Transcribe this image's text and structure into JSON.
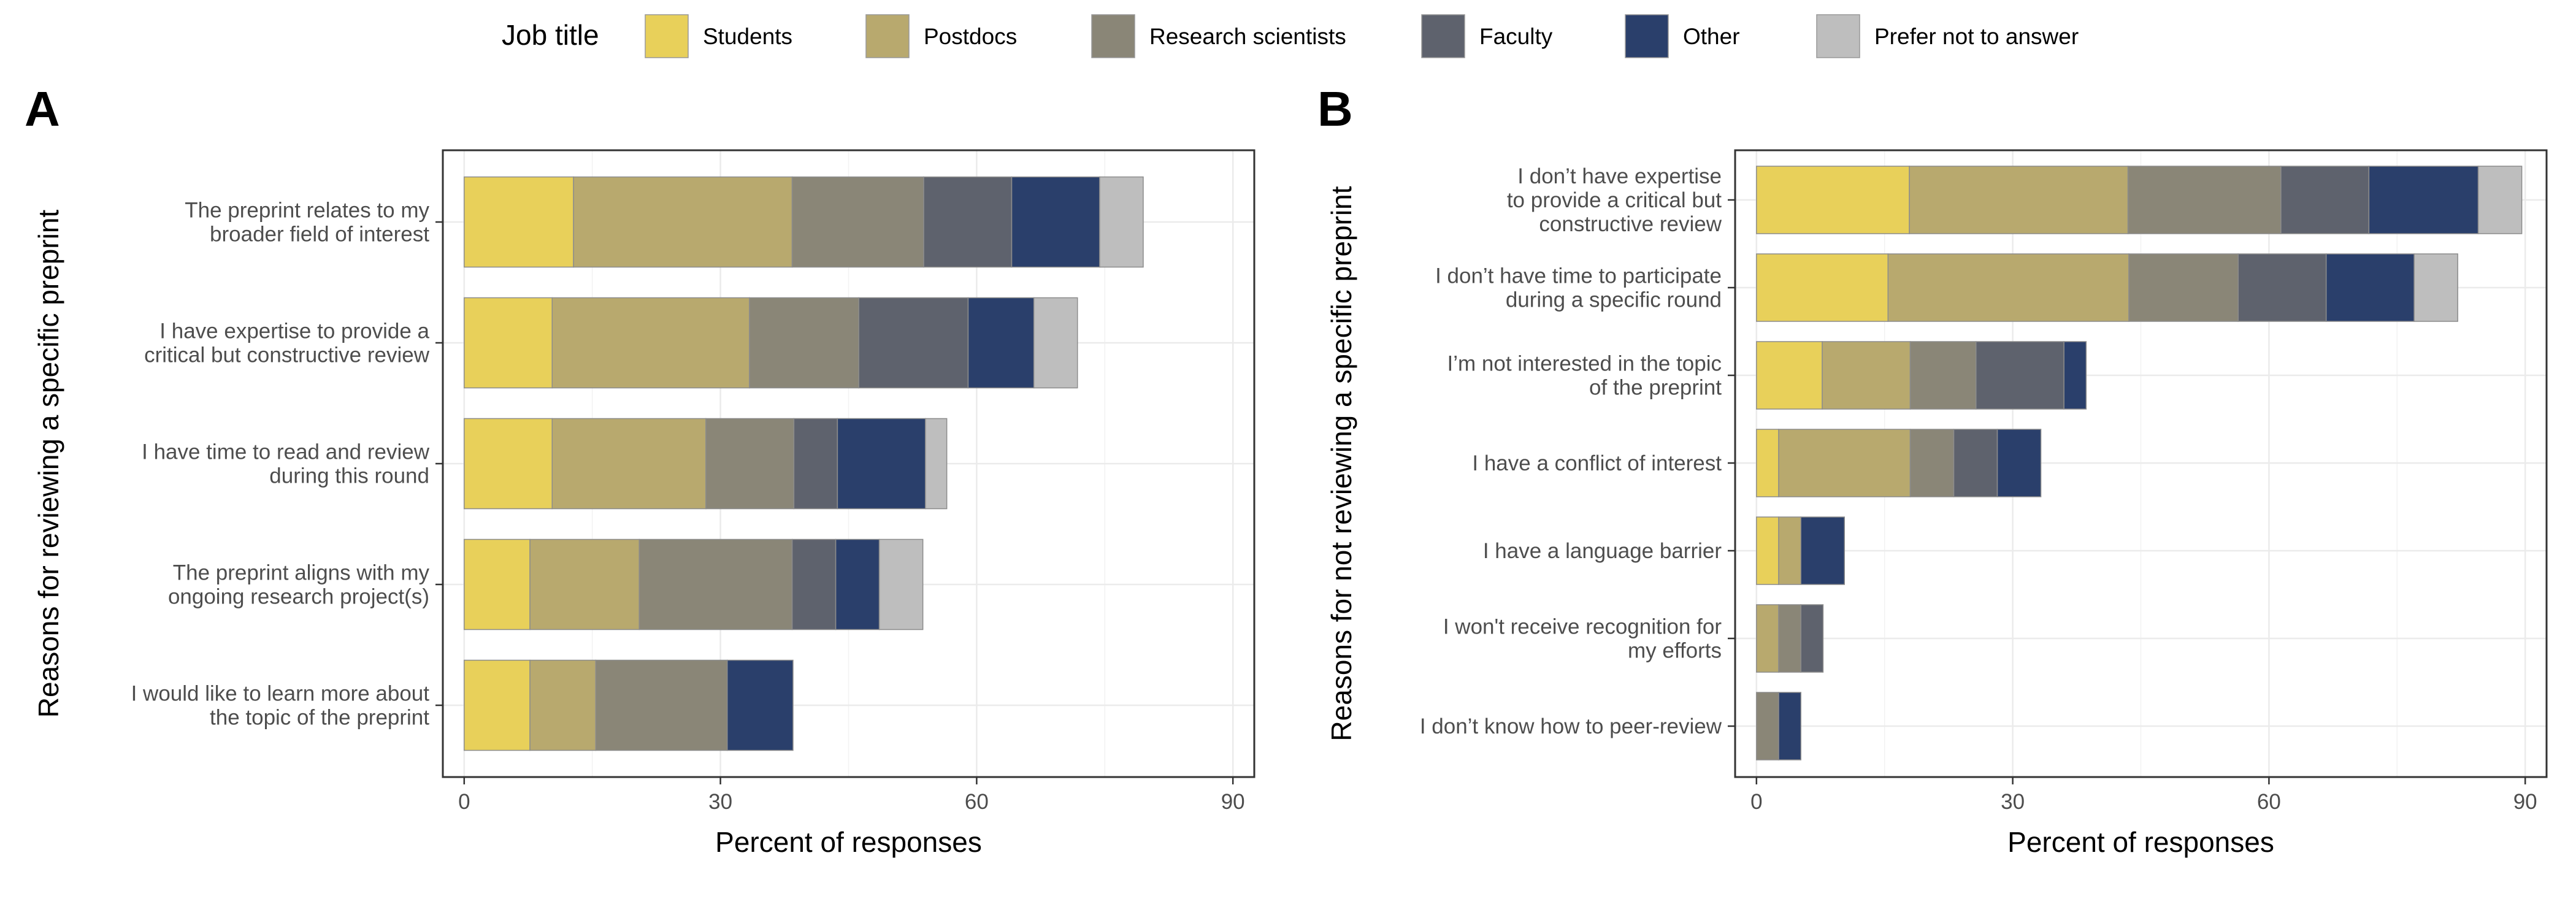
{
  "legend": {
    "title": "Job title",
    "items": [
      {
        "label": "Students",
        "color": "#E8D05A"
      },
      {
        "label": "Postdocs",
        "color": "#B8A96E"
      },
      {
        "label": "Research scientists",
        "color": "#8A8677"
      },
      {
        "label": "Faculty",
        "color": "#5E626D"
      },
      {
        "label": "Other",
        "color": "#2A3F6B"
      },
      {
        "label": "Prefer not to answer",
        "color": "#BEBEBE"
      }
    ]
  },
  "chart_data": [
    {
      "type": "bar",
      "orientation": "horizontal",
      "stacked": true,
      "panel_label": "A",
      "xlabel": "Percent of responses",
      "ylabel": "Reasons for reviewing a specific preprint",
      "xlim": [
        -2.5,
        92.5
      ],
      "xticks": [
        0,
        30,
        60,
        90
      ],
      "grid": true,
      "categories": [
        [
          "The preprint relates to my",
          "broader field of interest"
        ],
        [
          "I have expertise to provide a",
          "critical but constructive review"
        ],
        [
          "I have time to read and review",
          "during this round"
        ],
        [
          "The preprint aligns with my",
          "ongoing research project(s)"
        ],
        [
          "I would like to learn more about",
          "the topic of the preprint"
        ]
      ],
      "series": [
        {
          "name": "Students",
          "values": [
            12.8,
            10.3,
            10.3,
            7.7,
            7.7
          ]
        },
        {
          "name": "Postdocs",
          "values": [
            25.6,
            23.1,
            18.0,
            12.8,
            7.7
          ]
        },
        {
          "name": "Research scientists",
          "values": [
            15.4,
            12.8,
            10.3,
            17.9,
            15.4
          ]
        },
        {
          "name": "Faculty",
          "values": [
            10.3,
            12.8,
            5.1,
            5.1,
            0
          ]
        },
        {
          "name": "Other",
          "values": [
            10.3,
            7.7,
            10.3,
            5.1,
            7.7
          ]
        },
        {
          "name": "Prefer not to answer",
          "values": [
            5.1,
            5.1,
            2.5,
            5.1,
            0
          ]
        }
      ]
    },
    {
      "type": "bar",
      "orientation": "horizontal",
      "stacked": true,
      "panel_label": "B",
      "xlabel": "Percent of responses",
      "ylabel": "Reasons for not reviewing a specific preprint",
      "xlim": [
        -2.5,
        92.5
      ],
      "xticks": [
        0,
        30,
        60,
        90
      ],
      "grid": true,
      "categories": [
        [
          "I don’t have expertise",
          "to provide a critical but",
          "constructive review"
        ],
        [
          "I don’t have time to participate",
          "during a specific round"
        ],
        [
          "I’m not interested in the topic",
          "of the preprint"
        ],
        [
          "I have a conflict of interest"
        ],
        [
          "I have a language barrier"
        ],
        [
          "I won't receive recognition for",
          "my efforts"
        ],
        [
          "I don’t know how to peer-review"
        ]
      ],
      "series": [
        {
          "name": "Students",
          "values": [
            17.9,
            15.4,
            7.7,
            2.6,
            2.6,
            0,
            0
          ]
        },
        {
          "name": "Postdocs",
          "values": [
            25.6,
            28.2,
            10.3,
            15.4,
            2.6,
            2.6,
            0
          ]
        },
        {
          "name": "Research scientists",
          "values": [
            17.9,
            12.8,
            7.7,
            5.1,
            0,
            2.6,
            2.6
          ]
        },
        {
          "name": "Faculty",
          "values": [
            10.3,
            10.3,
            10.3,
            5.1,
            0,
            2.6,
            0
          ]
        },
        {
          "name": "Other",
          "values": [
            12.8,
            10.3,
            2.6,
            5.1,
            5.1,
            0,
            2.6
          ]
        },
        {
          "name": "Prefer not to answer",
          "values": [
            5.1,
            5.1,
            0,
            0,
            0,
            0,
            0
          ]
        }
      ]
    }
  ]
}
